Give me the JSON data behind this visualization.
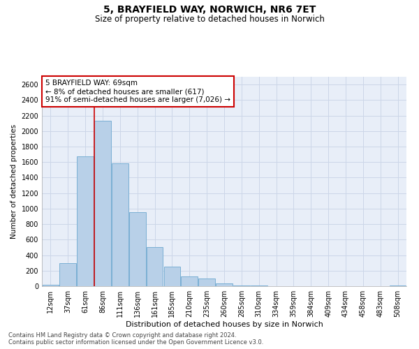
{
  "title_line1": "5, BRAYFIELD WAY, NORWICH, NR6 7ET",
  "title_line2": "Size of property relative to detached houses in Norwich",
  "xlabel": "Distribution of detached houses by size in Norwich",
  "ylabel": "Number of detached properties",
  "categories": [
    "12sqm",
    "37sqm",
    "61sqm",
    "86sqm",
    "111sqm",
    "136sqm",
    "161sqm",
    "185sqm",
    "210sqm",
    "235sqm",
    "260sqm",
    "285sqm",
    "310sqm",
    "334sqm",
    "359sqm",
    "384sqm",
    "409sqm",
    "434sqm",
    "458sqm",
    "483sqm",
    "508sqm"
  ],
  "values": [
    20,
    300,
    1670,
    2130,
    1580,
    950,
    500,
    250,
    130,
    100,
    40,
    12,
    5,
    0,
    2,
    0,
    1,
    0,
    0,
    0,
    10
  ],
  "bar_color": "#b8d0e8",
  "bar_edgecolor": "#7aafd4",
  "vline_x": 2.5,
  "vline_color": "#cc0000",
  "annotation_text": "5 BRAYFIELD WAY: 69sqm\n← 8% of detached houses are smaller (617)\n91% of semi-detached houses are larger (7,026) →",
  "annotation_box_edgecolor": "#cc0000",
  "annotation_box_facecolor": "#ffffff",
  "ylim": [
    0,
    2700
  ],
  "yticks": [
    0,
    200,
    400,
    600,
    800,
    1000,
    1200,
    1400,
    1600,
    1800,
    2000,
    2200,
    2400,
    2600
  ],
  "grid_color": "#ccd6e8",
  "background_color": "#e8eef8",
  "title1_fontsize": 10,
  "title2_fontsize": 8.5,
  "ylabel_fontsize": 7.5,
  "xlabel_fontsize": 8,
  "tick_fontsize": 7,
  "footer_line1": "Contains HM Land Registry data © Crown copyright and database right 2024.",
  "footer_line2": "Contains public sector information licensed under the Open Government Licence v3.0."
}
